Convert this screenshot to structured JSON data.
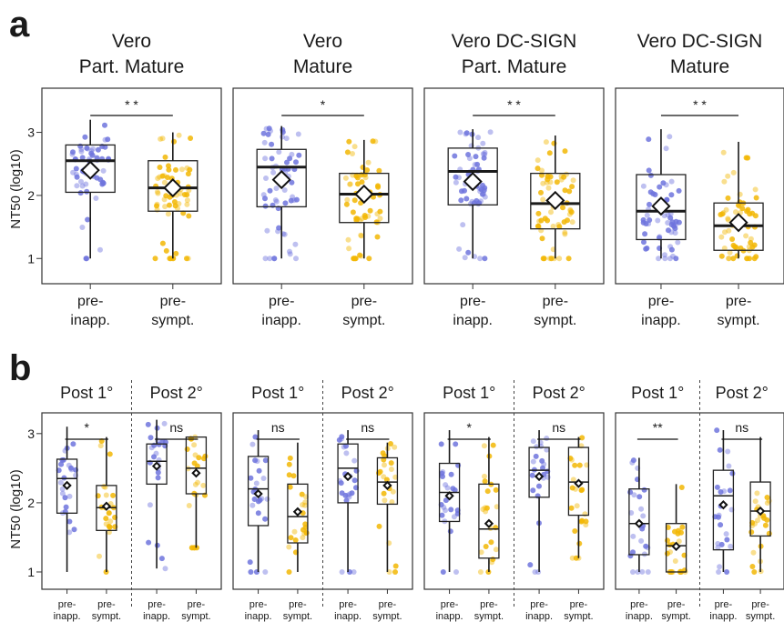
{
  "panel_labels": {
    "a": "a",
    "b": "b"
  },
  "y_axis_label": "NT50 (log10)",
  "y_ticks": [
    "1",
    "2",
    "3"
  ],
  "colors": {
    "pre_inapp": "#6f74dd",
    "pre_sympt": "#f2b705",
    "mean_marker_fill": "#ffffff",
    "box_stroke": "#222222"
  },
  "chart_data": {
    "type": "box",
    "a": {
      "ylim": [
        0.6,
        3.7
      ],
      "groups": [
        "pre-\ninapp.",
        "pre-\nsympt."
      ],
      "panels": [
        {
          "title": [
            "Vero",
            "Part. Mature"
          ],
          "significance": "* *",
          "series": [
            {
              "group": "pre-inapp.",
              "min": 1.0,
              "q1": 2.05,
              "median": 2.55,
              "q3": 2.8,
              "max": 3.2,
              "mean": 2.4
            },
            {
              "group": "pre-sympt.",
              "min": 1.0,
              "q1": 1.75,
              "median": 2.12,
              "q3": 2.55,
              "max": 3.0,
              "mean": 2.12
            }
          ]
        },
        {
          "title": [
            "Vero",
            "Mature"
          ],
          "significance": "*",
          "series": [
            {
              "group": "pre-inapp.",
              "min": 1.0,
              "q1": 1.82,
              "median": 2.45,
              "q3": 2.73,
              "max": 3.1,
              "mean": 2.25
            },
            {
              "group": "pre-sympt.",
              "min": 1.0,
              "q1": 1.57,
              "median": 2.02,
              "q3": 2.35,
              "max": 2.88,
              "mean": 2.02
            }
          ]
        },
        {
          "title": [
            "Vero DC-SIGN",
            "Part. Mature"
          ],
          "significance": "* *",
          "series": [
            {
              "group": "pre-inapp.",
              "min": 1.0,
              "q1": 1.85,
              "median": 2.38,
              "q3": 2.75,
              "max": 3.05,
              "mean": 2.22
            },
            {
              "group": "pre-sympt.",
              "min": 1.0,
              "q1": 1.47,
              "median": 1.87,
              "q3": 2.35,
              "max": 2.95,
              "mean": 1.92
            }
          ]
        },
        {
          "title": [
            "Vero DC-SIGN",
            "Mature"
          ],
          "significance": "* *",
          "series": [
            {
              "group": "pre-inapp.",
              "min": 1.0,
              "q1": 1.3,
              "median": 1.75,
              "q3": 2.33,
              "max": 3.05,
              "mean": 1.83
            },
            {
              "group": "pre-sympt.",
              "min": 1.0,
              "q1": 1.13,
              "median": 1.52,
              "q3": 1.88,
              "max": 2.85,
              "mean": 1.57
            }
          ]
        }
      ]
    },
    "b": {
      "ylim": [
        0.75,
        3.3
      ],
      "sub_titles": [
        "Post 1°",
        "Post 2°"
      ],
      "groups": [
        "pre-\ninapp.",
        "pre-\nsympt."
      ],
      "panels": [
        {
          "sub": [
            {
              "significance": "*",
              "series": [
                {
                  "group": "pre-inapp.",
                  "min": 1.0,
                  "q1": 1.85,
                  "median": 2.35,
                  "q3": 2.63,
                  "max": 3.1,
                  "mean": 2.25
                },
                {
                  "group": "pre-sympt.",
                  "min": 1.0,
                  "q1": 1.6,
                  "median": 1.93,
                  "q3": 2.25,
                  "max": 2.95,
                  "mean": 1.95
                }
              ]
            },
            {
              "significance": "ns",
              "series": [
                {
                  "group": "pre-inapp.",
                  "min": 1.05,
                  "q1": 2.27,
                  "median": 2.6,
                  "q3": 2.85,
                  "max": 3.2,
                  "mean": 2.53
                },
                {
                  "group": "pre-sympt.",
                  "min": 1.35,
                  "q1": 2.13,
                  "median": 2.5,
                  "q3": 2.95,
                  "max": 2.95,
                  "mean": 2.43
                }
              ]
            }
          ]
        },
        {
          "sub": [
            {
              "significance": "ns",
              "series": [
                {
                  "group": "pre-inapp.",
                  "min": 1.0,
                  "q1": 1.67,
                  "median": 2.2,
                  "q3": 2.67,
                  "max": 3.05,
                  "mean": 2.13
                },
                {
                  "group": "pre-sympt.",
                  "min": 1.0,
                  "q1": 1.42,
                  "median": 1.8,
                  "q3": 2.27,
                  "max": 2.87,
                  "mean": 1.87
                }
              ]
            },
            {
              "significance": "ns",
              "series": [
                {
                  "group": "pre-inapp.",
                  "min": 1.0,
                  "q1": 2.0,
                  "median": 2.5,
                  "q3": 2.85,
                  "max": 3.05,
                  "mean": 2.38
                },
                {
                  "group": "pre-sympt.",
                  "min": 1.0,
                  "q1": 1.98,
                  "median": 2.3,
                  "q3": 2.65,
                  "max": 2.87,
                  "mean": 2.25
                }
              ]
            }
          ]
        },
        {
          "sub": [
            {
              "significance": "*",
              "series": [
                {
                  "group": "pre-inapp.",
                  "min": 1.0,
                  "q1": 1.73,
                  "median": 2.15,
                  "q3": 2.57,
                  "max": 3.05,
                  "mean": 2.1
                },
                {
                  "group": "pre-sympt.",
                  "min": 1.0,
                  "q1": 1.2,
                  "median": 1.62,
                  "q3": 2.27,
                  "max": 2.95,
                  "mean": 1.7
                }
              ]
            },
            {
              "significance": "ns",
              "series": [
                {
                  "group": "pre-inapp.",
                  "min": 1.0,
                  "q1": 2.08,
                  "median": 2.47,
                  "q3": 2.8,
                  "max": 3.05,
                  "mean": 2.38
                },
                {
                  "group": "pre-sympt.",
                  "min": 1.2,
                  "q1": 1.82,
                  "median": 2.3,
                  "q3": 2.8,
                  "max": 2.95,
                  "mean": 2.28
                }
              ]
            }
          ]
        },
        {
          "sub": [
            {
              "significance": "**",
              "series": [
                {
                  "group": "pre-inapp.",
                  "min": 1.0,
                  "q1": 1.25,
                  "median": 1.7,
                  "q3": 2.2,
                  "max": 2.65,
                  "mean": 1.7
                },
                {
                  "group": "pre-sympt.",
                  "min": 1.0,
                  "q1": 1.0,
                  "median": 1.38,
                  "q3": 1.7,
                  "max": 2.27,
                  "mean": 1.37
                }
              ]
            },
            {
              "significance": "ns",
              "series": [
                {
                  "group": "pre-inapp.",
                  "min": 1.0,
                  "q1": 1.32,
                  "median": 2.1,
                  "q3": 2.47,
                  "max": 3.05,
                  "mean": 1.97
                },
                {
                  "group": "pre-sympt.",
                  "min": 1.0,
                  "q1": 1.52,
                  "median": 1.88,
                  "q3": 2.3,
                  "max": 2.95,
                  "mean": 1.88
                }
              ]
            }
          ]
        }
      ]
    }
  }
}
